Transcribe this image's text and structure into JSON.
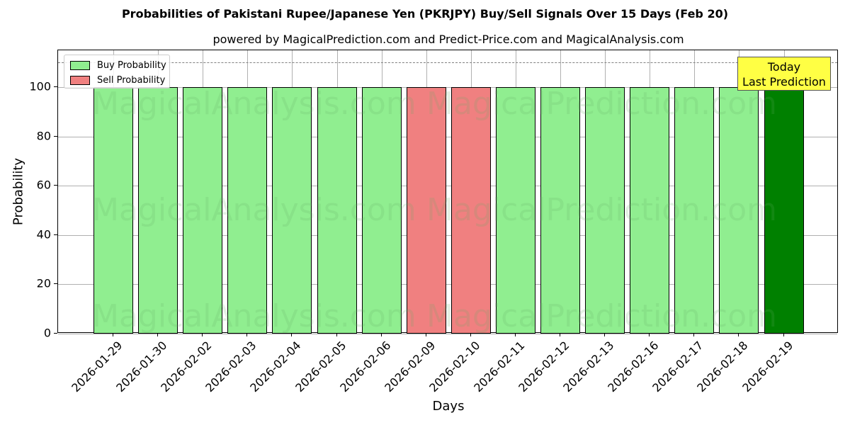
{
  "title": "Probabilities of Pakistani Rupee/Japanese Yen (PKRJPY) Buy/Sell Signals Over 15 Days (Feb 20)",
  "subtitle": "powered by MagicalPrediction.com and Predict-Price.com and MagicalAnalysis.com",
  "legend": {
    "buy_label": "Buy Probability",
    "sell_label": "Sell Probability"
  },
  "annotation": {
    "line1": "Today",
    "line2": "Last Prediction"
  },
  "watermarks": [
    "MagicalAnalysis.com",
    "MagicalPrediction.com"
  ],
  "colors": {
    "buy": "#90ee90",
    "sell": "#f08080",
    "today": "#008000",
    "annotation_bg": "#ffff44"
  },
  "chart_data": {
    "type": "bar",
    "title": "Probabilities of Pakistani Rupee/Japanese Yen (PKRJPY) Buy/Sell Signals Over 15 Days (Feb 20)",
    "subtitle": "powered by MagicalPrediction.com and Predict-Price.com and MagicalAnalysis.com",
    "xlabel": "Days",
    "ylabel": "Probability",
    "ylim": [
      0,
      115
    ],
    "yticks": [
      0,
      20,
      40,
      60,
      80,
      100
    ],
    "grid": true,
    "legend_position": "upper left",
    "reference_line": {
      "y": 110,
      "style": "dashed",
      "color": "#808080"
    },
    "categories": [
      "2026-01-29",
      "2026-01-30",
      "2026-02-02",
      "2026-02-03",
      "2026-02-04",
      "2026-02-05",
      "2026-02-06",
      "2026-02-09",
      "2026-02-10",
      "2026-02-11",
      "2026-02-12",
      "2026-02-13",
      "2026-02-16",
      "2026-02-17",
      "2026-02-18",
      "2026-02-19"
    ],
    "values": [
      100,
      100,
      100,
      100,
      100,
      100,
      100,
      100,
      100,
      100,
      100,
      100,
      100,
      100,
      100,
      100
    ],
    "signals": [
      "buy",
      "buy",
      "buy",
      "buy",
      "buy",
      "buy",
      "buy",
      "sell",
      "sell",
      "buy",
      "buy",
      "buy",
      "buy",
      "buy",
      "buy",
      "buy-today"
    ],
    "series": [
      {
        "name": "Buy Probability",
        "values": [
          100,
          100,
          100,
          100,
          100,
          100,
          100,
          0,
          0,
          100,
          100,
          100,
          100,
          100,
          100,
          100
        ]
      },
      {
        "name": "Sell Probability",
        "values": [
          0,
          0,
          0,
          0,
          0,
          0,
          0,
          100,
          100,
          0,
          0,
          0,
          0,
          0,
          0,
          0
        ]
      }
    ],
    "annotations": [
      {
        "text": "Today\nLast Prediction",
        "x": "2026-02-19"
      }
    ]
  }
}
